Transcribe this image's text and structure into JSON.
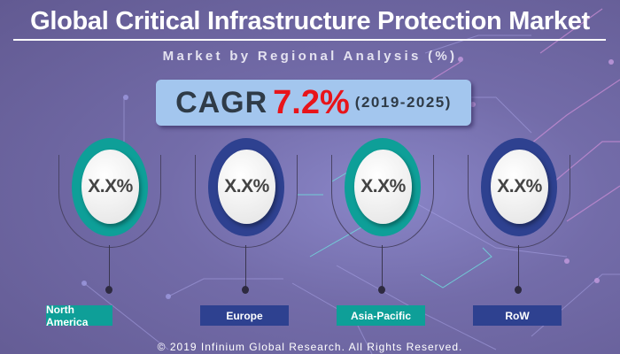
{
  "title": "Global Critical Infrastructure Protection Market",
  "subtitle": "Market by Regional Analysis (%)",
  "cagr": {
    "label": "CAGR",
    "value": "7.2%",
    "period": "(2019-2025)"
  },
  "regions": [
    {
      "name": "North America",
      "value": "X.X%",
      "color": "#0e9f98"
    },
    {
      "name": "Europe",
      "value": "X.X%",
      "color": "#2e4190"
    },
    {
      "name": "Asia-Pacific",
      "value": "X.X%",
      "color": "#0e9f98"
    },
    {
      "name": "RoW",
      "value": "X.X%",
      "color": "#2e4190"
    }
  ],
  "footer": "© 2019 Infinium Global Research. All Rights Reserved."
}
